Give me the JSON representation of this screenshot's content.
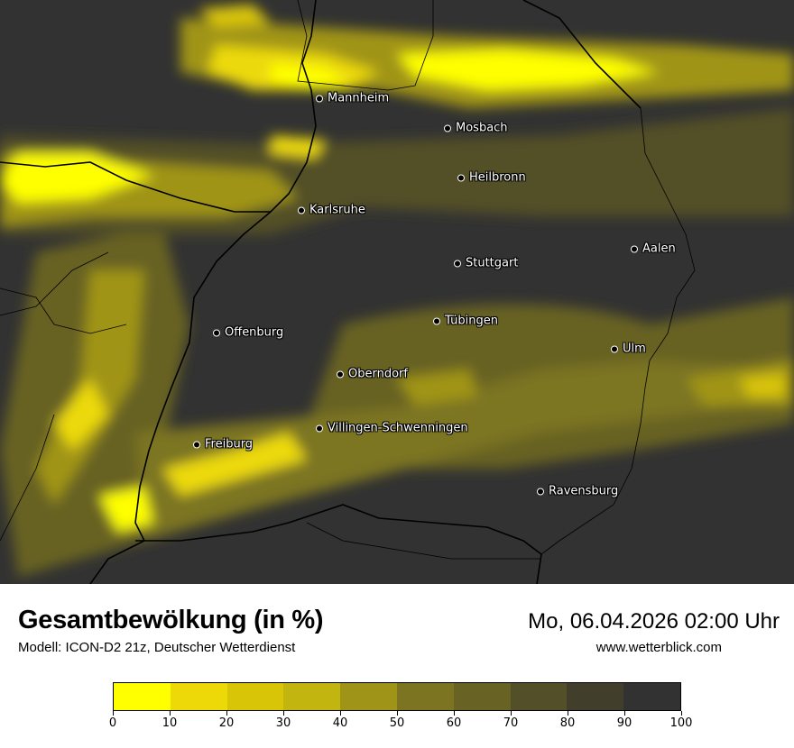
{
  "title": "Gesamtbewölkung (in %)",
  "model": "Modell: ICON-D2 21z, Deutscher Wetterdienst",
  "datetime": "Mo, 06.04.2026 02:00 Uhr",
  "website": "www.wetterblick.com",
  "legend": {
    "ticks": [
      "0",
      "10",
      "20",
      "30",
      "40",
      "50",
      "60",
      "70",
      "80",
      "90",
      "100"
    ],
    "colors": [
      "#ffff00",
      "#ecd907",
      "#d9c508",
      "#c2b510",
      "#a09418",
      "#7c7420",
      "#686224",
      "#534f28",
      "#413e2c",
      "#323232"
    ]
  },
  "cities": [
    {
      "name": "Mannheim"
    },
    {
      "name": "Mosbach"
    },
    {
      "name": "Heilbronn"
    },
    {
      "name": "Karlsruhe"
    },
    {
      "name": "Stuttgart"
    },
    {
      "name": "Aalen"
    },
    {
      "name": "Tübingen"
    },
    {
      "name": "Offenburg"
    },
    {
      "name": "Ulm"
    },
    {
      "name": "Oberndorf"
    },
    {
      "name": "Villingen-Schwenningen"
    },
    {
      "name": "Freiburg"
    },
    {
      "name": "Ravensburg"
    }
  ]
}
